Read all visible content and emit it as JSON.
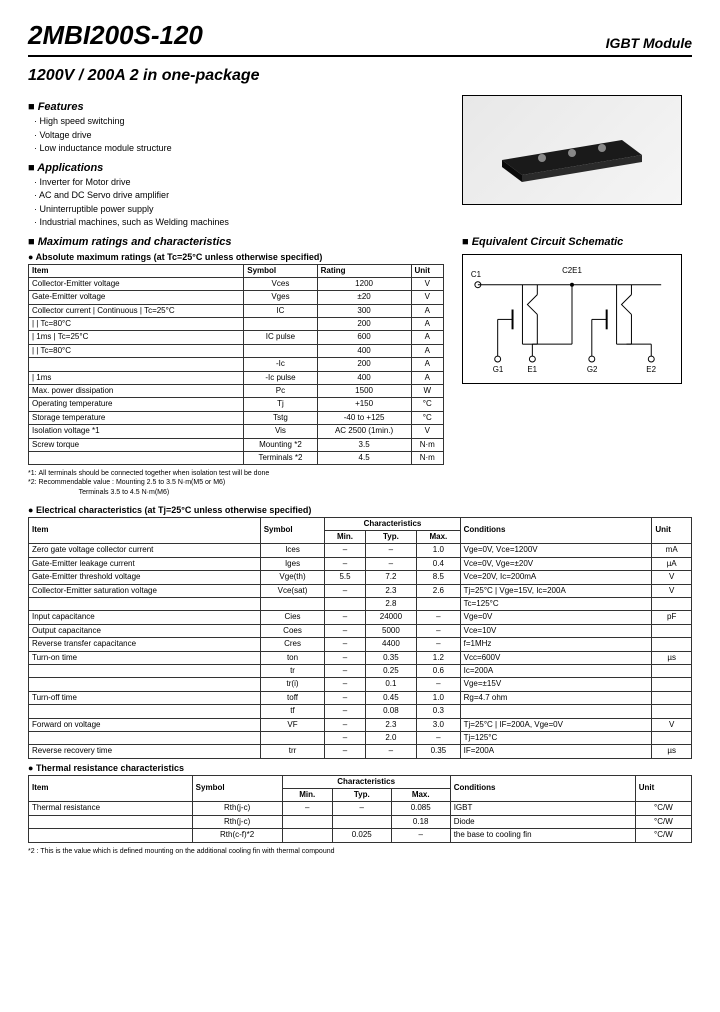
{
  "header": {
    "part_number": "2MBI200S-120",
    "module_type": "IGBT Module",
    "subtitle": "1200V / 200A  2 in one-package"
  },
  "features": {
    "title": "Features",
    "items": [
      "High speed switching",
      "Voltage drive",
      "Low inductance module structure"
    ]
  },
  "applications": {
    "title": "Applications",
    "items": [
      "Inverter for Motor drive",
      "AC and DC Servo drive amplifier",
      "Uninterruptible power supply",
      "Industrial machines, such as Welding machines"
    ]
  },
  "max_ratings": {
    "title": "Maximum ratings and characteristics",
    "sub_title": "Absolute maximum ratings (at Tc=25°C unless otherwise specified)",
    "headers": [
      "Item",
      "Symbol",
      "Rating",
      "Unit"
    ],
    "rows": [
      [
        "Collector-Emitter voltage",
        "Vces",
        "1200",
        "V"
      ],
      [
        "Gate-Emitter voltage",
        "Vges",
        "±20",
        "V"
      ],
      [
        "Collector current | Continuous | Tc=25°C",
        "IC",
        "300",
        "A"
      ],
      [
        "                  |            | Tc=80°C",
        "",
        "200",
        "A"
      ],
      [
        "                  | 1ms | Tc=25°C",
        "IC pulse",
        "600",
        "A"
      ],
      [
        "                  |     | Tc=80°C",
        "",
        "400",
        "A"
      ],
      [
        "",
        "-Ic",
        "200",
        "A"
      ],
      [
        "                  | 1ms",
        "-Ic pulse",
        "400",
        "A"
      ],
      [
        "Max. power dissipation",
        "Pc",
        "1500",
        "W"
      ],
      [
        "Operating temperature",
        "Tj",
        "+150",
        "°C"
      ],
      [
        "Storage temperature",
        "Tstg",
        "-40 to +125",
        "°C"
      ],
      [
        "Isolation voltage *1",
        "Vis",
        "AC 2500 (1min.)",
        "V"
      ],
      [
        "Screw torque",
        "Mounting *2",
        "3.5",
        "N·m"
      ],
      [
        "",
        "Terminals *2",
        "4.5",
        "N·m"
      ]
    ]
  },
  "footnote1": "*1: All terminals should be connected together when isolation test will be done\n*2: Recommendable value : Mounting 2.5 to 3.5 N·m(M5 or M6)\n                          Terminals 3.5 to 4.5 N·m(M6)",
  "schematic_title": "Equivalent Circuit Schematic",
  "schematic_labels": {
    "c1": "C1",
    "c2e1": "C2E1",
    "g1": "G1",
    "e1": "E1",
    "g2": "G2",
    "e2": "E2"
  },
  "elec": {
    "title": "Electrical characteristics (at Tj=25°C unless otherwise specified)",
    "headers": [
      "Item",
      "Symbol",
      "Min.",
      "Typ.",
      "Max.",
      "Conditions",
      "Unit"
    ],
    "char_label": "Characteristics",
    "rows": [
      [
        "Zero gate voltage collector current",
        "Ices",
        "–",
        "–",
        "1.0",
        "Vge=0V, Vce=1200V",
        "mA"
      ],
      [
        "Gate-Emitter leakage current",
        "Iges",
        "–",
        "–",
        "0.4",
        "Vce=0V, Vge=±20V",
        "µA"
      ],
      [
        "Gate-Emitter threshold voltage",
        "Vge(th)",
        "5.5",
        "7.2",
        "8.5",
        "Vce=20V, Ic=200mA",
        "V"
      ],
      [
        "Collector-Emitter saturation voltage",
        "Vce(sat)",
        "–",
        "2.3",
        "2.6",
        "Tj=25°C | Vge=15V, Ic=200A",
        "V"
      ],
      [
        "",
        "",
        "",
        "2.8",
        "",
        "Tc=125°C",
        ""
      ],
      [
        "Input capacitance",
        "Cies",
        "–",
        "24000",
        "–",
        "Vge=0V",
        "pF"
      ],
      [
        "Output capacitance",
        "Coes",
        "–",
        "5000",
        "–",
        "Vce=10V",
        ""
      ],
      [
        "Reverse transfer capacitance",
        "Cres",
        "–",
        "4400",
        "–",
        "f=1MHz",
        ""
      ],
      [
        "Turn-on time",
        "ton",
        "–",
        "0.35",
        "1.2",
        "Vcc=600V",
        "µs"
      ],
      [
        "",
        "tr",
        "–",
        "0.25",
        "0.6",
        "Ic=200A",
        ""
      ],
      [
        "",
        "tr(i)",
        "–",
        "0.1",
        "–",
        "Vge=±15V",
        ""
      ],
      [
        "Turn-off time",
        "toff",
        "–",
        "0.45",
        "1.0",
        "Rg=4.7 ohm",
        ""
      ],
      [
        "",
        "tf",
        "–",
        "0.08",
        "0.3",
        "",
        ""
      ],
      [
        "Forward on voltage",
        "VF",
        "–",
        "2.3",
        "3.0",
        "Tj=25°C | IF=200A, Vge=0V",
        "V"
      ],
      [
        "",
        "",
        "–",
        "2.0",
        "–",
        "Tj=125°C",
        ""
      ],
      [
        "Reverse recovery time",
        "trr",
        "–",
        "–",
        "0.35",
        "IF=200A",
        "µs"
      ]
    ]
  },
  "thermal": {
    "title": "Thermal resistance characteristics",
    "headers": [
      "Item",
      "Symbol",
      "Min.",
      "Typ.",
      "Max.",
      "Conditions",
      "Unit"
    ],
    "char_label": "Characteristics",
    "rows": [
      [
        "Thermal resistance",
        "Rth(j-c)",
        "–",
        "–",
        "0.085",
        "IGBT",
        "°C/W"
      ],
      [
        "",
        "Rth(j-c)",
        "",
        "",
        "0.18",
        "Diode",
        "°C/W"
      ],
      [
        "",
        "Rth(c-f)*2",
        "",
        "0.025",
        "–",
        "the base to cooling fin",
        "°C/W"
      ]
    ]
  },
  "footnote2": "*2 : This is the value which is defined mounting on the additional cooling fin with thermal compound",
  "colors": {
    "text": "#000000",
    "bg": "#ffffff",
    "border": "#333333"
  }
}
